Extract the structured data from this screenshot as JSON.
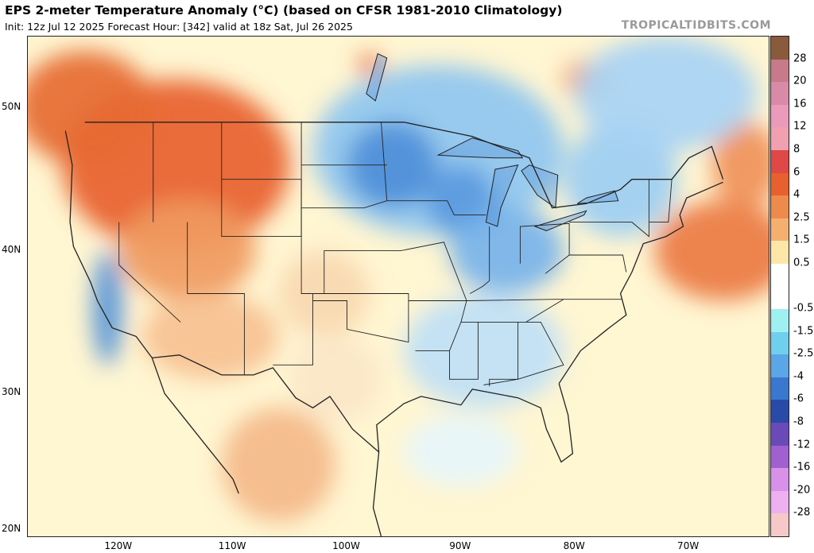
{
  "header": {
    "title": "EPS 2-meter Temperature Anomaly (°C) (based on CFSR 1981-2010 Climatology)",
    "subtitle": "Init: 12z Jul 12 2025   Forecast Hour: [342]   valid at 18z Sat, Jul 26 2025",
    "credit": "TROPICALTIDBITS.COM"
  },
  "map": {
    "extent": {
      "lon_min": -128,
      "lon_max": -63,
      "lat_min": 20,
      "lat_max": 55
    },
    "lat_ticks": [
      {
        "value": 50,
        "label": "50N"
      },
      {
        "value": 40,
        "label": "40N"
      },
      {
        "value": 30,
        "label": "30N"
      },
      {
        "value": 20,
        "label": "20N"
      }
    ],
    "lon_ticks": [
      {
        "value": -120,
        "label": "120W"
      },
      {
        "value": -110,
        "label": "110W"
      },
      {
        "value": -100,
        "label": "100W"
      },
      {
        "value": -90,
        "label": "90W"
      },
      {
        "value": -80,
        "label": "80W"
      },
      {
        "value": -70,
        "label": "70W"
      }
    ],
    "colors": {
      "ocean": "#fff6d2",
      "land": "#f6dcc4",
      "border": "#222222"
    },
    "regions": [
      {
        "name": "warm-west",
        "lon": -115,
        "lat": 46,
        "rx": 10,
        "ry": 6,
        "color": "#e8602e"
      },
      {
        "name": "warm-pacific-nw",
        "lon": -123,
        "lat": 50,
        "rx": 6,
        "ry": 4,
        "color": "#e66a32"
      },
      {
        "name": "warm-great-basin",
        "lon": -114,
        "lat": 40,
        "rx": 6,
        "ry": 3.5,
        "color": "#f09a60"
      },
      {
        "name": "warm-desert-sw",
        "lon": -112,
        "lat": 34,
        "rx": 6,
        "ry": 3,
        "color": "#f7c090"
      },
      {
        "name": "warm-high-plains",
        "lon": -102,
        "lat": 37,
        "rx": 4,
        "ry": 3,
        "color": "#f9d8b0"
      },
      {
        "name": "warm-texas",
        "lon": -101,
        "lat": 31,
        "rx": 4,
        "ry": 3,
        "color": "#fbe6c8"
      },
      {
        "name": "warm-mexico",
        "lon": -106,
        "lat": 25,
        "rx": 5,
        "ry": 4,
        "color": "#f4b888"
      },
      {
        "name": "warm-atlantic",
        "lon": -67,
        "lat": 40,
        "rx": 6,
        "ry": 3.5,
        "color": "#ec7a42"
      },
      {
        "name": "warm-nova-scotia",
        "lon": -65,
        "lat": 46,
        "rx": 3,
        "ry": 3,
        "color": "#f09058"
      },
      {
        "name": "warm-hudson",
        "lon": -79,
        "lat": 52,
        "rx": 2,
        "ry": 1.3,
        "color": "#f09a60"
      },
      {
        "name": "warm-manitoba",
        "lon": -98,
        "lat": 53,
        "rx": 1,
        "ry": 0.7,
        "color": "#e8602e"
      },
      {
        "name": "cool-north-central",
        "lon": -92,
        "lat": 47,
        "rx": 11,
        "ry": 6,
        "color": "#8ec6f0"
      },
      {
        "name": "cool-upper-midwest",
        "lon": -96,
        "lat": 46,
        "rx": 4,
        "ry": 3,
        "color": "#4f8fd8"
      },
      {
        "name": "cool-wisconsin",
        "lon": -90,
        "lat": 43.5,
        "rx": 3,
        "ry": 2.5,
        "color": "#5a9ade"
      },
      {
        "name": "cool-ohio-valley",
        "lon": -86,
        "lat": 40,
        "rx": 5,
        "ry": 3,
        "color": "#76b2ea"
      },
      {
        "name": "cool-southeast",
        "lon": -88,
        "lat": 33,
        "rx": 7,
        "ry": 4,
        "color": "#bfe0f6"
      },
      {
        "name": "cool-northeast",
        "lon": -76,
        "lat": 45,
        "rx": 5,
        "ry": 4,
        "color": "#9ccdf2"
      },
      {
        "name": "cool-quebec",
        "lon": -72,
        "lat": 51,
        "rx": 8,
        "ry": 4,
        "color": "#a8d2f4"
      },
      {
        "name": "cool-california-coast",
        "lon": -121,
        "lat": 36,
        "rx": 1.3,
        "ry": 4,
        "color": "#4f8fd8"
      },
      {
        "name": "cool-gulf",
        "lon": -90,
        "lat": 26,
        "rx": 5,
        "ry": 2.5,
        "color": "#e6f5fb"
      }
    ],
    "borders": [
      {
        "name": "us-canada",
        "points": [
          [
            -123,
            49
          ],
          [
            -95,
            49
          ],
          [
            -89,
            48
          ],
          [
            -84,
            46.5
          ],
          [
            -82,
            43
          ],
          [
            -79,
            43.3
          ],
          [
            -76,
            44.3
          ],
          [
            -75,
            45
          ],
          [
            -71.5,
            45
          ],
          [
            -70,
            46.5
          ],
          [
            -68,
            47.3
          ],
          [
            -67,
            45
          ]
        ]
      },
      {
        "name": "us-mexico",
        "points": [
          [
            -117.1,
            32.5
          ],
          [
            -114.7,
            32.7
          ],
          [
            -111,
            31.3
          ],
          [
            -108.2,
            31.3
          ],
          [
            -106.5,
            31.8
          ],
          [
            -104.5,
            29.7
          ],
          [
            -103,
            29
          ],
          [
            -101.5,
            29.8
          ],
          [
            -99.5,
            27.5
          ],
          [
            -97.2,
            25.9
          ]
        ]
      },
      {
        "name": "west-coast",
        "points": [
          [
            -124.7,
            48.4
          ],
          [
            -124.1,
            46
          ],
          [
            -124.3,
            42
          ],
          [
            -124,
            40.3
          ],
          [
            -122.5,
            37.8
          ],
          [
            -121.9,
            36.5
          ],
          [
            -120.6,
            34.6
          ],
          [
            -118.5,
            34
          ],
          [
            -117.1,
            32.5
          ],
          [
            -116,
            30
          ],
          [
            -114,
            28
          ],
          [
            -112,
            26
          ],
          [
            -110,
            24
          ],
          [
            -109.5,
            23
          ]
        ]
      },
      {
        "name": "gulf-coast",
        "points": [
          [
            -97.2,
            25.9
          ],
          [
            -97.4,
            27.8
          ],
          [
            -95,
            29.3
          ],
          [
            -93.5,
            29.8
          ],
          [
            -90,
            29.2
          ],
          [
            -89,
            30.3
          ],
          [
            -85,
            29.7
          ],
          [
            -83,
            29
          ],
          [
            -82.5,
            27.5
          ],
          [
            -81.2,
            25.2
          ],
          [
            -80.2,
            25.8
          ],
          [
            -80.6,
            28.5
          ],
          [
            -81.4,
            30.7
          ]
        ]
      },
      {
        "name": "east-coast",
        "points": [
          [
            -81.4,
            30.7
          ],
          [
            -79.5,
            33
          ],
          [
            -77,
            34.6
          ],
          [
            -75.5,
            35.5
          ],
          [
            -76,
            37
          ],
          [
            -75,
            38.5
          ],
          [
            -74,
            40.5
          ],
          [
            -72,
            41
          ],
          [
            -70.5,
            41.7
          ],
          [
            -70.8,
            42.5
          ],
          [
            -70.2,
            43.7
          ],
          [
            -67,
            44.8
          ]
        ]
      },
      {
        "name": "mexico-gulf-coast",
        "points": [
          [
            -97.2,
            25.9
          ],
          [
            -97.7,
            22
          ],
          [
            -97,
            20
          ]
        ]
      }
    ],
    "state_lines": [
      [
        [
          -117,
          49
        ],
        [
          -117,
          42
        ]
      ],
      [
        [
          -111,
          49
        ],
        [
          -111,
          41
        ],
        [
          -104,
          41
        ],
        [
          -104,
          45
        ],
        [
          -111,
          45
        ]
      ],
      [
        [
          -120,
          42
        ],
        [
          -120,
          39
        ],
        [
          -114.6,
          35
        ]
      ],
      [
        [
          -114,
          42
        ],
        [
          -114,
          37
        ],
        [
          -109,
          37
        ],
        [
          -109,
          31.3
        ]
      ],
      [
        [
          -103,
          37
        ],
        [
          -103,
          32
        ],
        [
          -106.5,
          32
        ]
      ],
      [
        [
          -104,
          49
        ],
        [
          -104,
          37
        ],
        [
          -102,
          37
        ],
        [
          -102,
          40
        ],
        [
          -95.3,
          40
        ]
      ],
      [
        [
          -97,
          49
        ],
        [
          -96.5,
          43.5
        ],
        [
          -98.5,
          43
        ],
        [
          -104,
          43
        ]
      ],
      [
        [
          -104,
          46
        ],
        [
          -96.5,
          46
        ]
      ],
      [
        [
          -102,
          37
        ],
        [
          -94.6,
          37
        ],
        [
          -94.6,
          33.6
        ],
        [
          -100,
          34.5
        ],
        [
          -100,
          36.5
        ],
        [
          -103,
          36.5
        ]
      ],
      [
        [
          -94.6,
          36.5
        ],
        [
          -89.5,
          36.5
        ],
        [
          -90,
          35
        ],
        [
          -91,
          33
        ],
        [
          -94,
          33
        ]
      ],
      [
        [
          -95.3,
          40
        ],
        [
          -91.5,
          40.6
        ],
        [
          -89.5,
          36.5
        ]
      ],
      [
        [
          -96.5,
          43.5
        ],
        [
          -91.2,
          43.5
        ],
        [
          -90.6,
          42.5
        ],
        [
          -87.8,
          42.5
        ]
      ],
      [
        [
          -91,
          33
        ],
        [
          -91,
          31
        ],
        [
          -88.5,
          31
        ],
        [
          -88.5,
          35
        ],
        [
          -90,
          35
        ]
      ],
      [
        [
          -88.5,
          35
        ],
        [
          -85,
          35
        ],
        [
          -85,
          31
        ],
        [
          -88,
          30.6
        ]
      ],
      [
        [
          -85,
          35
        ],
        [
          -83,
          35
        ],
        [
          -81,
          32
        ],
        [
          -85,
          31
        ],
        [
          -87.5,
          31
        ],
        [
          -87.5,
          30.5
        ]
      ],
      [
        [
          -84.8,
          39.1
        ],
        [
          -84.8,
          41.7
        ],
        [
          -80.5,
          41.9
        ],
        [
          -80.5,
          39.7
        ],
        [
          -82.6,
          38.4
        ]
      ],
      [
        [
          -87.5,
          41.7
        ],
        [
          -87.5,
          37.9
        ],
        [
          -88.1,
          37.5
        ],
        [
          -89.2,
          37
        ]
      ],
      [
        [
          -89.5,
          36.5
        ],
        [
          -81.7,
          36.6
        ],
        [
          -75.9,
          36.6
        ]
      ],
      [
        [
          -84.3,
          35
        ],
        [
          -81,
          36.6
        ]
      ],
      [
        [
          -80.5,
          42
        ],
        [
          -75,
          42
        ],
        [
          -73.5,
          41
        ],
        [
          -73.5,
          45
        ]
      ],
      [
        [
          -80.5,
          39.7
        ],
        [
          -75.8,
          39.7
        ],
        [
          -75.5,
          38.5
        ]
      ],
      [
        [
          -73.5,
          42
        ],
        [
          -71.8,
          42
        ],
        [
          -71.5,
          45
        ]
      ]
    ],
    "lakes": [
      {
        "name": "lake-superior",
        "points": [
          [
            -92,
            46.7
          ],
          [
            -89,
            47.9
          ],
          [
            -85,
            47
          ],
          [
            -84.6,
            46.5
          ],
          [
            -87,
            46.5
          ],
          [
            -90,
            46.6
          ]
        ]
      },
      {
        "name": "lake-michigan",
        "points": [
          [
            -87.8,
            42
          ],
          [
            -87,
            45.7
          ],
          [
            -85,
            46
          ],
          [
            -86.5,
            43
          ],
          [
            -86.8,
            41.7
          ]
        ]
      },
      {
        "name": "lake-huron",
        "points": [
          [
            -84,
            46
          ],
          [
            -81.5,
            45.3
          ],
          [
            -81.7,
            43
          ],
          [
            -83.3,
            43.9
          ],
          [
            -84.7,
            45.6
          ]
        ]
      },
      {
        "name": "lake-erie",
        "points": [
          [
            -83.5,
            41.7
          ],
          [
            -79,
            42.8
          ],
          [
            -79.2,
            42.5
          ],
          [
            -82.5,
            41.4
          ]
        ]
      },
      {
        "name": "lake-ontario",
        "points": [
          [
            -79.8,
            43.3
          ],
          [
            -76.2,
            43.5
          ],
          [
            -76.5,
            44.2
          ],
          [
            -79,
            43.7
          ]
        ]
      },
      {
        "name": "lake-winnipeg",
        "points": [
          [
            -97.5,
            50.5
          ],
          [
            -96.5,
            53.5
          ],
          [
            -97.3,
            53.8
          ],
          [
            -98.3,
            51
          ]
        ]
      }
    ]
  },
  "colorbar": {
    "label_lines": [
      {
        "after_index": 0,
        "label": "28"
      },
      {
        "after_index": 1,
        "label": "20"
      },
      {
        "after_index": 2,
        "label": "16"
      },
      {
        "after_index": 3,
        "label": "12"
      },
      {
        "after_index": 4,
        "label": "8"
      },
      {
        "after_index": 5,
        "label": "6"
      },
      {
        "after_index": 6,
        "label": "4"
      },
      {
        "after_index": 7,
        "label": "2.5"
      },
      {
        "after_index": 8,
        "label": "1.5"
      },
      {
        "after_index": 9,
        "label": "0.5"
      },
      {
        "after_index": 11,
        "label": "-0.5"
      },
      {
        "after_index": 12,
        "label": "-1.5"
      },
      {
        "after_index": 13,
        "label": "-2.5"
      },
      {
        "after_index": 14,
        "label": "-4"
      },
      {
        "after_index": 15,
        "label": "-6"
      },
      {
        "after_index": 16,
        "label": "-8"
      },
      {
        "after_index": 17,
        "label": "-12"
      },
      {
        "after_index": 18,
        "label": "-16"
      },
      {
        "after_index": 19,
        "label": "-20"
      },
      {
        "after_index": 20,
        "label": "-28"
      }
    ],
    "colors": [
      "#8b5a3c",
      "#c77a8a",
      "#d98aa6",
      "#ec9abb",
      "#f0a0b0",
      "#e04848",
      "#e8602e",
      "#ee8a4a",
      "#f5b070",
      "#fce6a8",
      "#ffffff",
      "#ffffff",
      "#9ff0f0",
      "#6fd0ee",
      "#5aa6e6",
      "#3a78d0",
      "#2a4aa8",
      "#6a4ab8",
      "#a060d0",
      "#d890e8",
      "#eeb0f0",
      "#f6c8c8"
    ]
  }
}
